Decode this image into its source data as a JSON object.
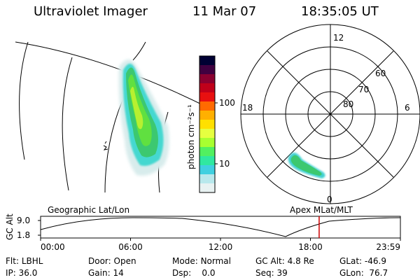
{
  "header": {
    "title": "Ultraviolet Imager",
    "date": "11 Mar 07",
    "time": "18:35:05 UT"
  },
  "colorbar": {
    "label": "photon cm⁻²s⁻¹",
    "ticks": [
      "100",
      "10"
    ],
    "colors": [
      "#000033",
      "#400040",
      "#8a0030",
      "#c0001a",
      "#e81010",
      "#ff6a00",
      "#ffb000",
      "#ffe000",
      "#e6ff40",
      "#a8ff30",
      "#52f060",
      "#30e8a0",
      "#40d0e0",
      "#b8e8ec",
      "#e8f2f2"
    ]
  },
  "polar": {
    "mlt_labels": [
      "12",
      "18",
      "6",
      "0"
    ],
    "lat_labels": [
      "60",
      "70",
      "80"
    ]
  },
  "altitude_plot": {
    "ylabel": "GC Alt",
    "yticks": [
      "9.0",
      "1.8"
    ],
    "left_label": "Geographic Lat/Lon",
    "right_label": "Apex MLat/MLT",
    "xticks": [
      "00:00",
      "06:00",
      "12:00",
      "18:00",
      "23:59"
    ],
    "current_time_hours": 18.58,
    "current_marker_color": "#cc0000"
  },
  "info": {
    "row1": [
      {
        "label": "Flt:",
        "value": "LBHL"
      },
      {
        "label": "Door:",
        "value": "Open"
      },
      {
        "label": "Mode:",
        "value": "Normal"
      },
      {
        "label": "GC Alt:",
        "value": "4.8 Re"
      },
      {
        "label": "GLat:",
        "value": "-46.9"
      }
    ],
    "row2": [
      {
        "label": "IP:",
        "value": "36.0"
      },
      {
        "label": "Gain:",
        "value": "14"
      },
      {
        "label": "Dsp:",
        "value": "0.0"
      },
      {
        "label": "Seq:",
        "value": "39"
      },
      {
        "label": "GLon:",
        "value": "76.7"
      }
    ]
  }
}
